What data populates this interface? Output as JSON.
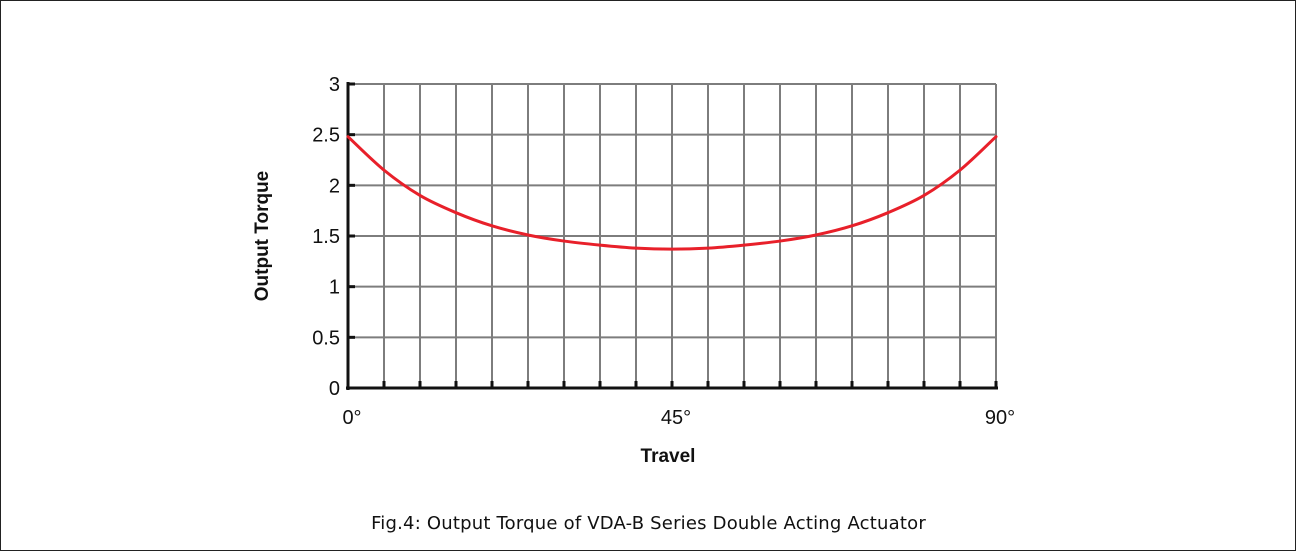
{
  "caption": "Fig.4: Output Torque of VDA-B Series Double Acting Actuator",
  "chart_data": {
    "type": "line",
    "title": "",
    "xlabel": "Travel",
    "ylabel": "Output Torque",
    "xlim": [
      0,
      90
    ],
    "ylim": [
      0,
      3
    ],
    "x_ticks": [
      {
        "value": 0,
        "label": "0°"
      },
      {
        "value": 45,
        "label": "45°"
      },
      {
        "value": 90,
        "label": "90°"
      }
    ],
    "y_ticks": [
      {
        "value": 0,
        "label": "0"
      },
      {
        "value": 0.5,
        "label": "0.5"
      },
      {
        "value": 1,
        "label": "1"
      },
      {
        "value": 1.5,
        "label": "1.5"
      },
      {
        "value": 2,
        "label": "2"
      },
      {
        "value": 2.5,
        "label": "2.5"
      },
      {
        "value": 3,
        "label": "3"
      }
    ],
    "x_grid_step": 5,
    "y_grid_step": 0.5,
    "grid": true,
    "series_color": "#e8202a",
    "series": [
      {
        "x": [
          0,
          5,
          10,
          15,
          20,
          25,
          30,
          35,
          40,
          45,
          50,
          55,
          60,
          65,
          70,
          75,
          80,
          85,
          90
        ],
        "y": [
          2.48,
          2.15,
          1.9,
          1.73,
          1.6,
          1.51,
          1.45,
          1.41,
          1.38,
          1.37,
          1.38,
          1.41,
          1.45,
          1.51,
          1.6,
          1.73,
          1.9,
          2.15,
          2.48
        ]
      }
    ]
  }
}
